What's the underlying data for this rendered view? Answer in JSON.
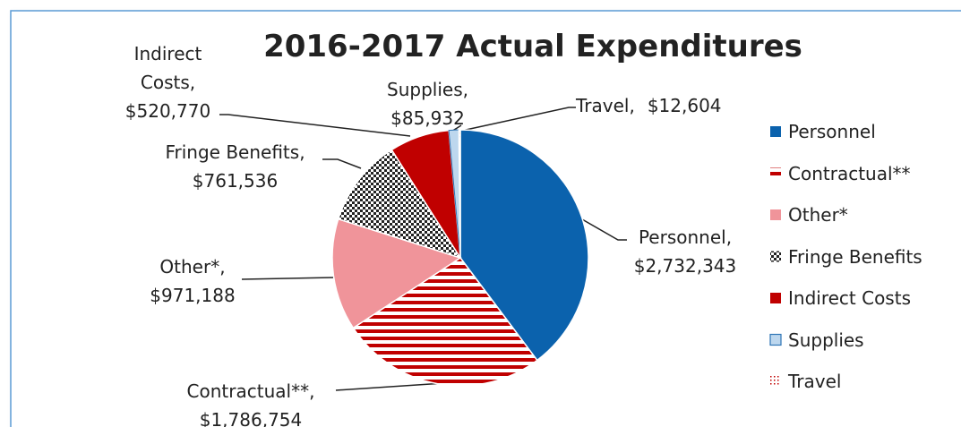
{
  "chart_data": {
    "type": "pie",
    "title": "2016-2017 Actual Expenditures",
    "categories": [
      "Personnel",
      "Contractual**",
      "Other*",
      "Fringe Benefits",
      "Indirect Costs",
      "Supplies",
      "Travel"
    ],
    "values": [
      2732343,
      1786754,
      971188,
      761536,
      520770,
      85932,
      12604
    ],
    "value_labels": [
      "$2,732,343",
      "$1,786,754",
      "$971,188",
      "$761,536",
      "$520,770",
      "$85,932",
      "$12,604"
    ],
    "colors": [
      "#0b62ad",
      "#c00000",
      "#f0949a",
      "#222222",
      "#c00000",
      "#bdd7ee",
      "#c00000"
    ],
    "legend": "right"
  }
}
